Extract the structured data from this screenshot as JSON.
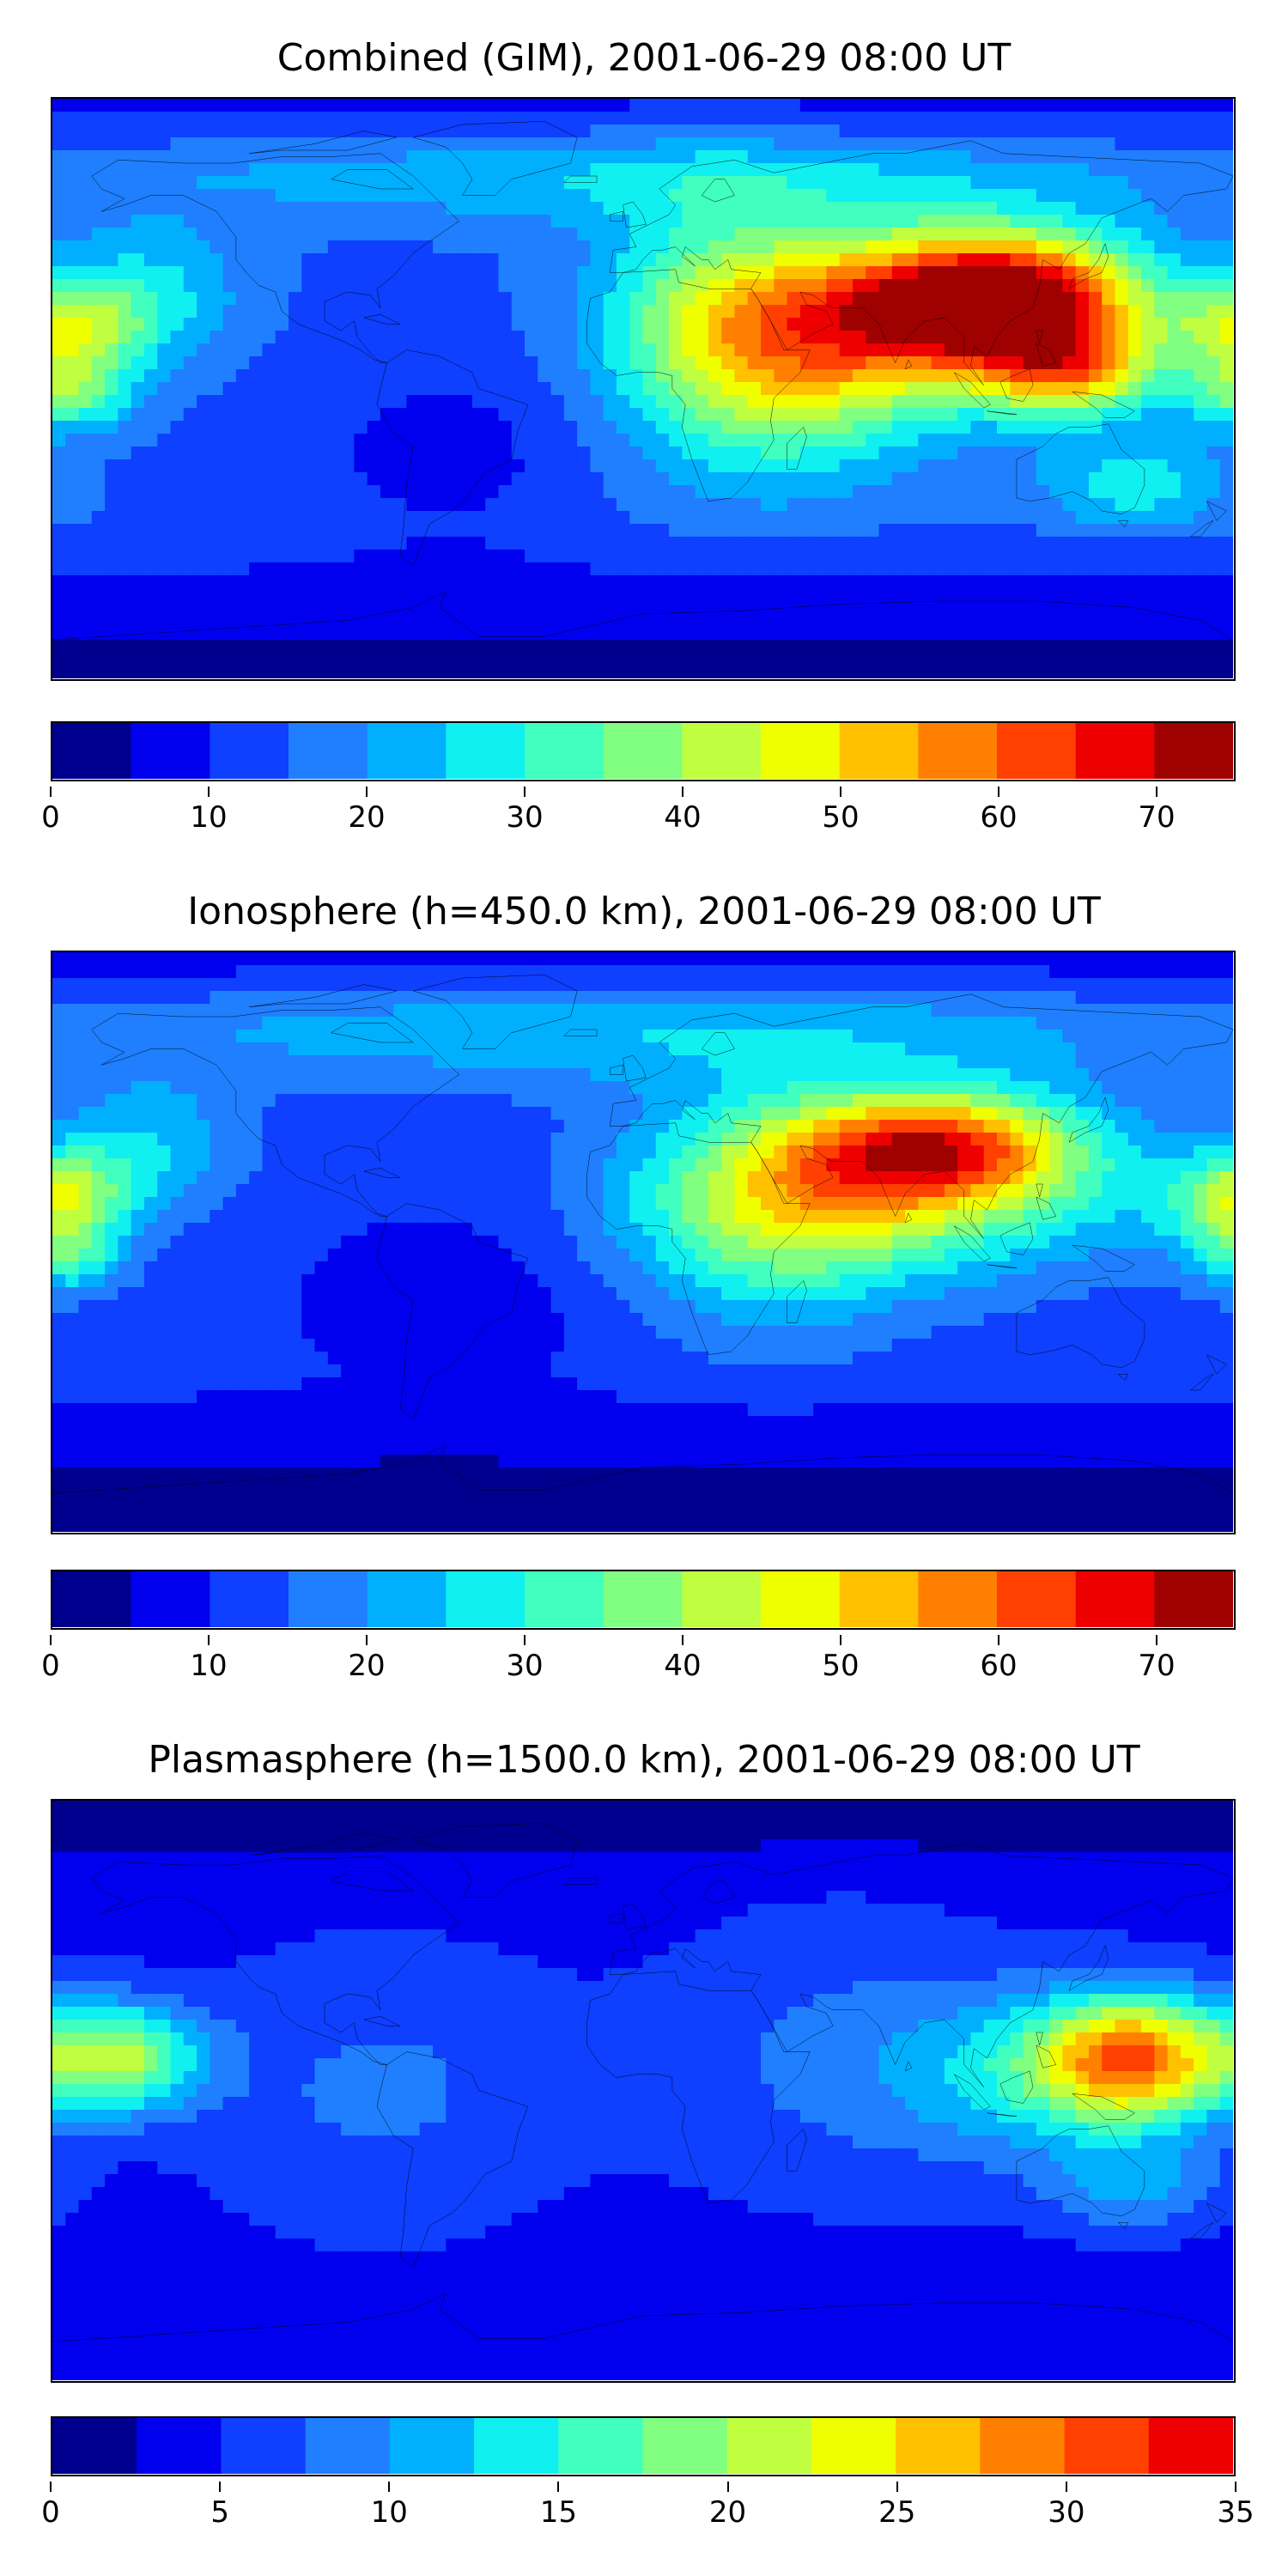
{
  "panels": [
    {
      "title": "Combined (GIM), 2001-06-29 08:00 UT",
      "colorbar": {
        "min": 0,
        "max": 75,
        "step": 5,
        "ticks": [
          "0",
          "10",
          "20",
          "30",
          "40",
          "50",
          "60",
          "70"
        ],
        "tick_values": [
          0,
          10,
          20,
          30,
          40,
          50,
          60,
          70
        ]
      },
      "field": {
        "base": 14,
        "blobs": [
          {
            "lon": 110,
            "lat": 28,
            "amp": 52,
            "slon": 28,
            "slat": 14
          },
          {
            "lon": 85,
            "lat": 22,
            "amp": 26,
            "slon": 45,
            "slat": 18
          },
          {
            "lon": 130,
            "lat": 5,
            "amp": 30,
            "slon": 18,
            "slat": 10
          },
          {
            "lon": 50,
            "lat": 10,
            "amp": 24,
            "slon": 30,
            "slat": 25
          },
          {
            "lon": 20,
            "lat": 20,
            "amp": 14,
            "slon": 25,
            "slat": 30
          },
          {
            "lon": -175,
            "lat": 18,
            "amp": 26,
            "slon": 16,
            "slat": 10
          },
          {
            "lon": -175,
            "lat": -2,
            "amp": 20,
            "slon": 14,
            "slat": 8
          },
          {
            "lon": -150,
            "lat": 30,
            "amp": 12,
            "slon": 20,
            "slat": 15
          },
          {
            "lon": 0,
            "lat": 65,
            "amp": 10,
            "slon": 120,
            "slat": 10
          },
          {
            "lon": -60,
            "lat": -20,
            "amp": -6,
            "slon": 30,
            "slat": 20
          },
          {
            "lon": 150,
            "lat": -30,
            "amp": 14,
            "slon": 20,
            "slat": 10
          }
        ],
        "south_falloff": 12
      }
    },
    {
      "title": "Ionosphere  (h=450.0 km), 2001-06-29 08:00 UT",
      "colorbar": {
        "min": 0,
        "max": 75,
        "step": 5,
        "ticks": [
          "0",
          "10",
          "20",
          "30",
          "40",
          "50",
          "60",
          "70"
        ],
        "tick_values": [
          0,
          10,
          20,
          30,
          40,
          50,
          60,
          70
        ]
      },
      "field": {
        "base": 12,
        "blobs": [
          {
            "lon": 90,
            "lat": 30,
            "amp": 40,
            "slon": 30,
            "slat": 12
          },
          {
            "lon": 80,
            "lat": 15,
            "amp": 24,
            "slon": 50,
            "slat": 18
          },
          {
            "lon": 40,
            "lat": 10,
            "amp": 20,
            "slon": 30,
            "slat": 25
          },
          {
            "lon": -175,
            "lat": 15,
            "amp": 20,
            "slon": 14,
            "slat": 10
          },
          {
            "lon": -175,
            "lat": -5,
            "amp": 16,
            "slon": 12,
            "slat": 8
          },
          {
            "lon": -150,
            "lat": 30,
            "amp": 12,
            "slon": 20,
            "slat": 15
          },
          {
            "lon": 0,
            "lat": 65,
            "amp": 12,
            "slon": 130,
            "slat": 12
          },
          {
            "lon": 175,
            "lat": 10,
            "amp": 10,
            "slon": 15,
            "slat": 10
          },
          {
            "lon": -60,
            "lat": -20,
            "amp": -6,
            "slon": 30,
            "slat": 20
          }
        ],
        "south_falloff": 12
      }
    },
    {
      "title": "Plasmasphere (h=1500.0 km), 2001-06-29 08:00 UT",
      "colorbar": {
        "min": 0,
        "max": 35,
        "step": 2.5,
        "ticks": [
          "0",
          "5",
          "10",
          "15",
          "20",
          "25",
          "30",
          "35"
        ],
        "tick_values": [
          0,
          5,
          10,
          15,
          20,
          25,
          30,
          35
        ]
      },
      "field": {
        "base": 4,
        "blobs": [
          {
            "lon": 150,
            "lat": 10,
            "amp": 22,
            "slon": 20,
            "slat": 14
          },
          {
            "lon": 120,
            "lat": 5,
            "amp": 8,
            "slon": 30,
            "slat": 18
          },
          {
            "lon": -160,
            "lat": 10,
            "amp": 16,
            "slon": 18,
            "slat": 12
          },
          {
            "lon": -80,
            "lat": 0,
            "amp": 4,
            "slon": 40,
            "slat": 30
          },
          {
            "lon": 60,
            "lat": 10,
            "amp": 4,
            "slon": 40,
            "slat": 30
          },
          {
            "lon": 150,
            "lat": -30,
            "amp": 6,
            "slon": 20,
            "slat": 10
          }
        ],
        "south_falloff": 0
      }
    }
  ],
  "colors": {
    "jet": [
      "#00008f",
      "#0000ef",
      "#0f3fff",
      "#1f7fff",
      "#00b0ff",
      "#10f0f0",
      "#40ffbf",
      "#80ff80",
      "#bfff40",
      "#f0ff00",
      "#ffc000",
      "#ff8000",
      "#ff4000",
      "#ef0000",
      "#9f0000"
    ],
    "coast": "#000000"
  }
}
